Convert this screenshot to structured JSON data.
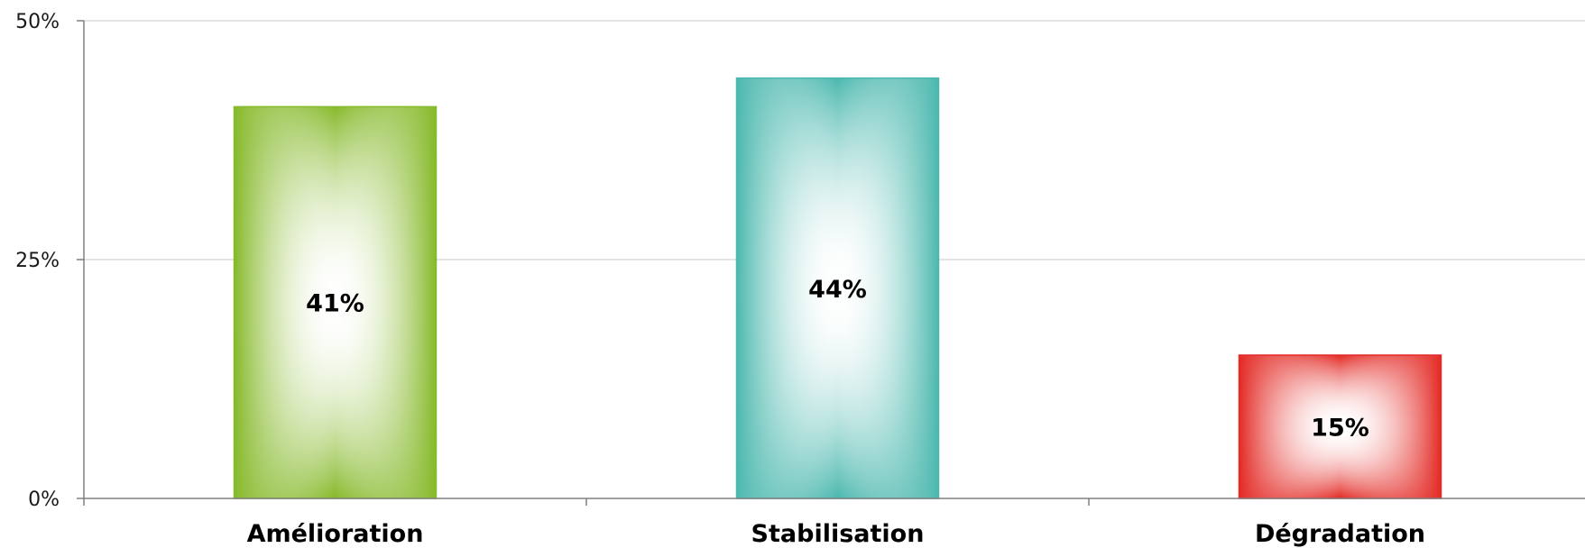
{
  "chart_data": {
    "type": "bar",
    "title": "",
    "xlabel": "",
    "ylabel": "",
    "categories": [
      "Amélioration",
      "Stabilisation",
      "Dégradation"
    ],
    "values": [
      41,
      44,
      15
    ],
    "data_labels": [
      "41%",
      "44%",
      "15%"
    ],
    "ylim": [
      0,
      50
    ],
    "yticks": [
      0,
      25,
      50
    ],
    "ytick_labels": [
      "0%",
      "25%",
      "50%"
    ],
    "colors": [
      "#86B92A",
      "#4BB8AE",
      "#E32A25"
    ],
    "grid": true,
    "legend": "none"
  }
}
